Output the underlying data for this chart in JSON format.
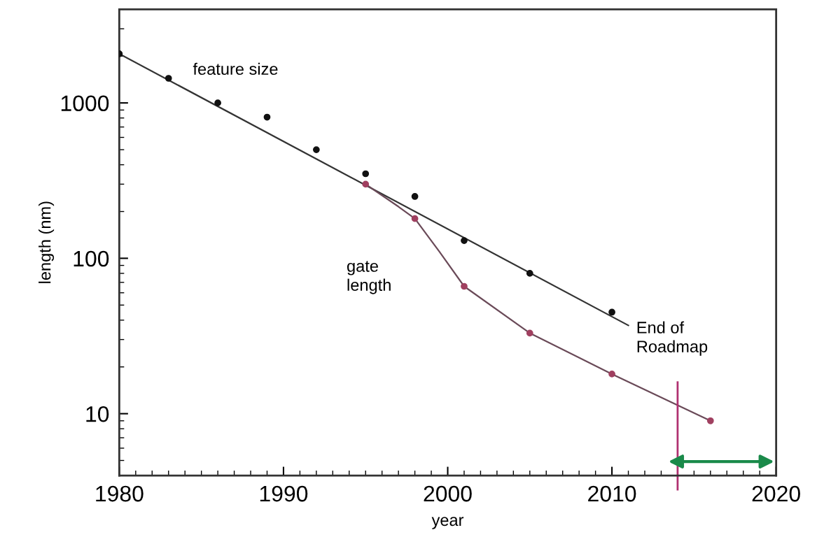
{
  "chart_data": {
    "type": "scatter",
    "xlabel": "year",
    "ylabel": "length (nm)",
    "log": "y",
    "xlim": [
      1980,
      2020
    ],
    "xticks": [
      1980,
      1990,
      2000,
      2010,
      2020
    ],
    "ylim": [
      4,
      4000
    ],
    "yticks": [
      10,
      100,
      1000
    ],
    "grid": false,
    "legend": false,
    "marker": "circle",
    "series": [
      {
        "type": "line",
        "marker": "none",
        "color": "#333333",
        "x": [
          1980,
          2011
        ],
        "values": [
          2070,
          37
        ]
      },
      {
        "color": "#111111",
        "x": [
          1980,
          1983,
          1986,
          1989,
          1992,
          1995,
          1998,
          2001,
          2005,
          2010
        ],
        "values": [
          2070,
          1440,
          1000,
          810,
          500,
          350,
          250,
          130,
          80,
          45
        ]
      },
      {
        "type": "line",
        "marker": "none",
        "color": "#6a4a58",
        "x": [
          1995,
          1997,
          1998,
          1999.5,
          2001,
          2005,
          2010,
          2016
        ],
        "values": [
          300,
          215,
          180,
          110,
          66,
          33,
          18,
          9
        ]
      },
      {
        "color": "#a04060",
        "x": [
          1995,
          1998,
          2001,
          2005,
          2010,
          2016
        ],
        "values": [
          300,
          180,
          66,
          33,
          18,
          9
        ]
      }
    ],
    "annotations": [
      "feature size",
      "gate\nlength",
      "End of\nRoadmap"
    ],
    "ref_lines": [
      {
        "axis": "x",
        "value": 2014,
        "color": "#b03070"
      }
    ]
  }
}
